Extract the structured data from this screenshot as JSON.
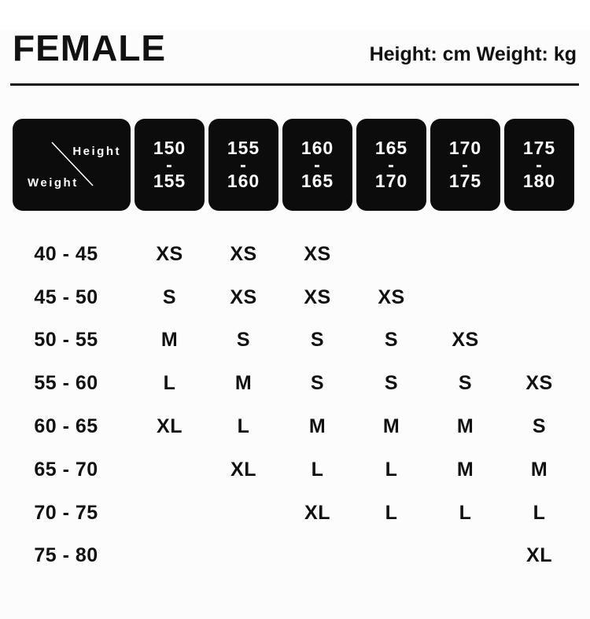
{
  "header": {
    "title": "FEMALE",
    "units_label": "Height: cm Weight: kg"
  },
  "table": {
    "corner": {
      "height_label": "Height",
      "weight_label": "Weight"
    },
    "height_columns": [
      "150\n-\n155",
      "155\n-\n160",
      "160\n-\n165",
      "165\n-\n170",
      "170\n-\n175",
      "175\n-\n180"
    ],
    "rows": [
      {
        "weight": "40 - 45",
        "sizes": [
          "XS",
          "XS",
          "XS",
          "",
          "",
          ""
        ]
      },
      {
        "weight": "45 - 50",
        "sizes": [
          "S",
          "XS",
          "XS",
          "XS",
          "",
          ""
        ]
      },
      {
        "weight": "50 - 55",
        "sizes": [
          "M",
          "S",
          "S",
          "S",
          "XS",
          ""
        ]
      },
      {
        "weight": "55 - 60",
        "sizes": [
          "L",
          "M",
          "S",
          "S",
          "S",
          "XS"
        ]
      },
      {
        "weight": "60 - 65",
        "sizes": [
          "XL",
          "L",
          "M",
          "M",
          "M",
          "S"
        ]
      },
      {
        "weight": "65 - 70",
        "sizes": [
          "",
          "XL",
          "L",
          "L",
          "M",
          "M"
        ]
      },
      {
        "weight": "70 - 75",
        "sizes": [
          "",
          "",
          "XL",
          "L",
          "L",
          "L"
        ]
      },
      {
        "weight": "75 - 80",
        "sizes": [
          "",
          "",
          "",
          "",
          "",
          "XL"
        ]
      }
    ]
  },
  "colors": {
    "background": "#fcfcfc",
    "box_black": "#0c0c0c",
    "text_black": "#111111",
    "box_text_white": "#ffffff"
  },
  "chart_data": {
    "type": "table",
    "title": "FEMALE",
    "subtitle": "Height: cm Weight: kg",
    "x_axis_label": "Height",
    "y_axis_label": "Weight",
    "columns_height_cm": [
      "150-155",
      "155-160",
      "160-165",
      "165-170",
      "170-175",
      "175-180"
    ],
    "rows_weight_kg": [
      "40-45",
      "45-50",
      "50-55",
      "55-60",
      "60-65",
      "65-70",
      "70-75",
      "75-80"
    ],
    "cell_values": [
      [
        "XS",
        "XS",
        "XS",
        "",
        "",
        ""
      ],
      [
        "S",
        "XS",
        "XS",
        "XS",
        "",
        ""
      ],
      [
        "M",
        "S",
        "S",
        "S",
        "XS",
        ""
      ],
      [
        "L",
        "M",
        "S",
        "S",
        "S",
        "XS"
      ],
      [
        "XL",
        "L",
        "M",
        "M",
        "M",
        "S"
      ],
      [
        "",
        "XL",
        "L",
        "L",
        "M",
        "M"
      ],
      [
        "",
        "",
        "XL",
        "L",
        "L",
        "L"
      ],
      [
        "",
        "",
        "",
        "",
        "",
        "XL"
      ]
    ],
    "legend_position": "none",
    "grid": false
  }
}
